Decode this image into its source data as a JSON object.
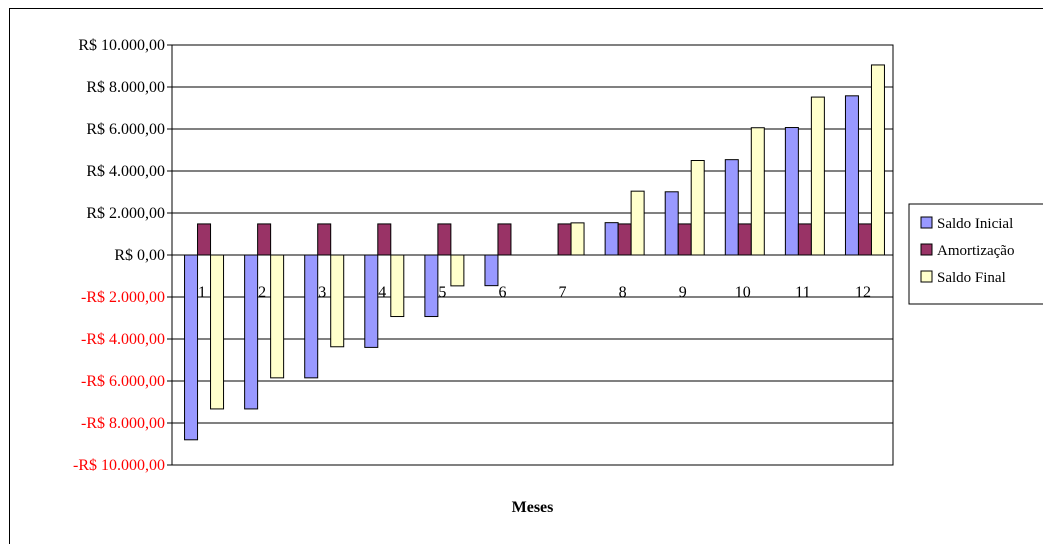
{
  "chart_data": {
    "type": "bar",
    "title": "",
    "xlabel": "Meses",
    "ylabel": "",
    "categories": [
      "1",
      "2",
      "3",
      "4",
      "5",
      "6",
      "7",
      "8",
      "9",
      "10",
      "11",
      "12"
    ],
    "series": [
      {
        "name": "Saldo Inicial",
        "color": "#9999ff",
        "values": [
          -8800,
          -7330,
          -5850,
          -4400,
          -2930,
          -1460,
          0,
          1540,
          3010,
          4540,
          6070,
          7580
        ]
      },
      {
        "name": "Amortização",
        "color": "#993366",
        "values": [
          1480,
          1480,
          1480,
          1480,
          1480,
          1480,
          1480,
          1480,
          1480,
          1480,
          1480,
          1480
        ]
      },
      {
        "name": "Saldo Final",
        "color": "#ffffcc",
        "values": [
          -7330,
          -5850,
          -4370,
          -2930,
          -1470,
          0,
          1530,
          3040,
          4500,
          6060,
          7520,
          9050
        ]
      }
    ],
    "ylim": [
      -10000,
      10000
    ],
    "yticks": [
      10000,
      8000,
      6000,
      4000,
      2000,
      0,
      -2000,
      -4000,
      -6000,
      -8000,
      -10000
    ],
    "ytick_labels": [
      "R$ 10.000,00",
      "R$ 8.000,00",
      "R$ 6.000,00",
      "R$ 4.000,00",
      "R$ 2.000,00",
      "R$ 0,00",
      "-R$ 2.000,00",
      "-R$ 4.000,00",
      "-R$ 6.000,00",
      "-R$ 8.000,00",
      "-R$ 10.000,00"
    ],
    "negative_label_color": "#ff0000",
    "grid": true,
    "legend_position": "right"
  }
}
